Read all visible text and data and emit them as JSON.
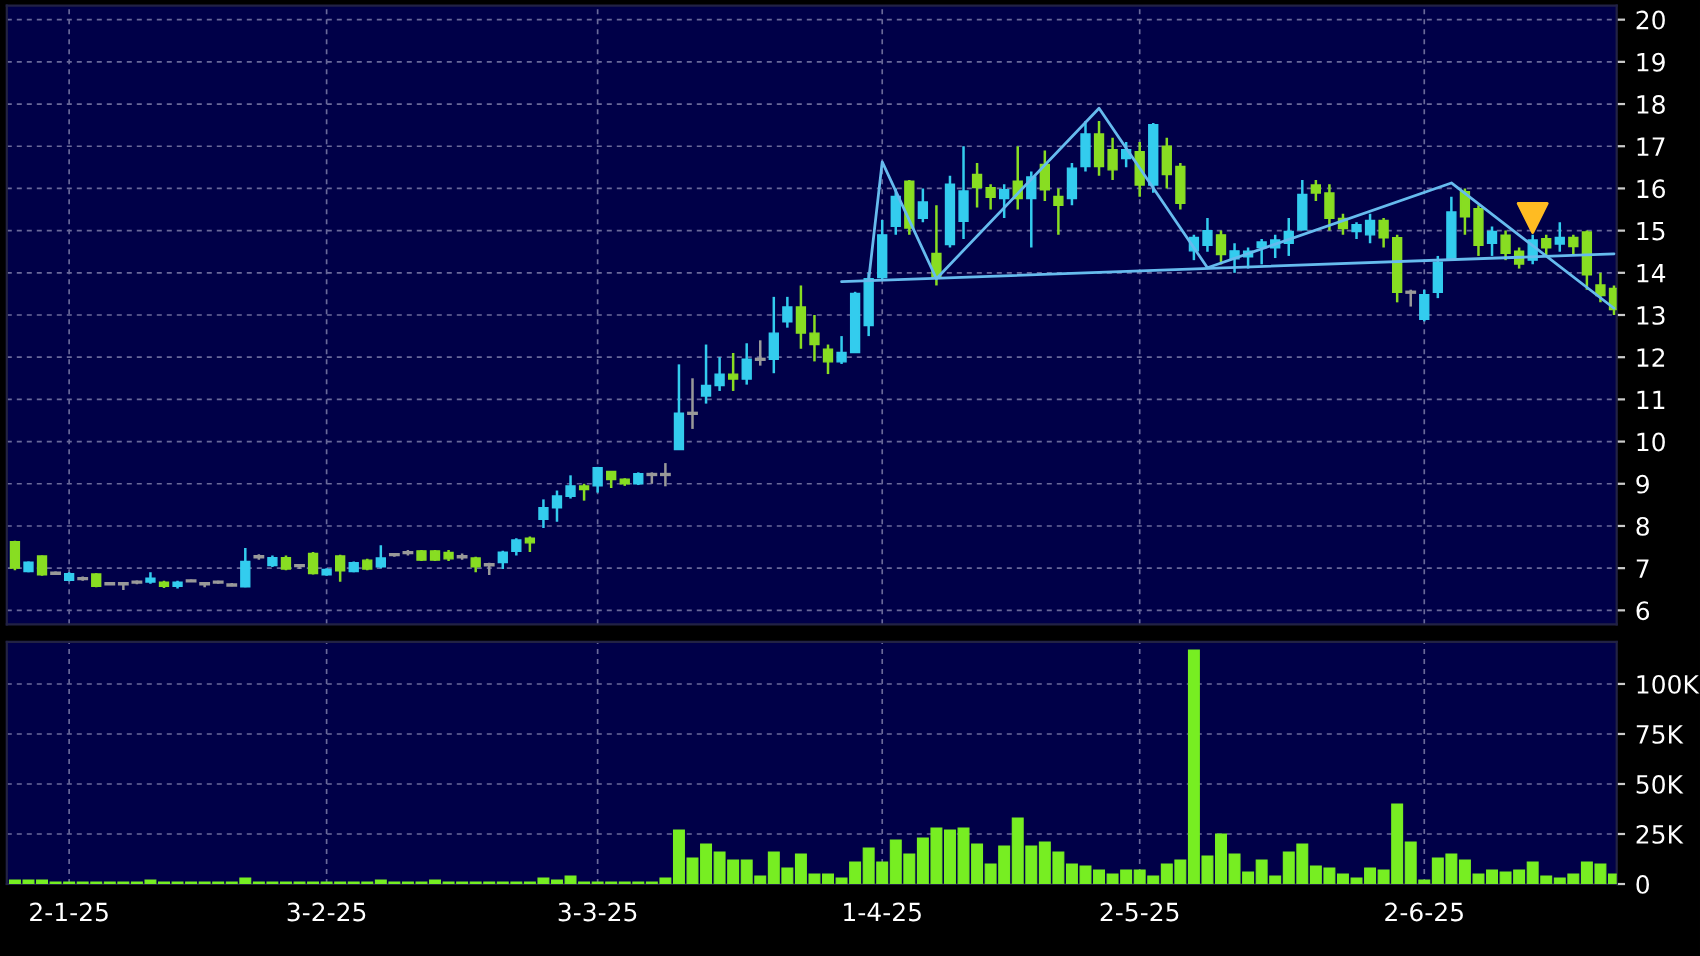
{
  "chart_data": [
    {
      "type": "candlestick",
      "categories": [
        null,
        null,
        null,
        null,
        null,
        null,
        null,
        null,
        null,
        null,
        null,
        null,
        null,
        null,
        null,
        null,
        null,
        null,
        null,
        null,
        null,
        null,
        null,
        null,
        null,
        null,
        null,
        null,
        null,
        null,
        null,
        null,
        null,
        null,
        null,
        null,
        null,
        null,
        null,
        null,
        null,
        null,
        null,
        null,
        null,
        null,
        null,
        null,
        null,
        null,
        null,
        null,
        null,
        null,
        null,
        null,
        null,
        null,
        null,
        null,
        null,
        null,
        null,
        null,
        null,
        null,
        null,
        null,
        null,
        null,
        null,
        null,
        null,
        null,
        null,
        null,
        null,
        null,
        null,
        null,
        null,
        null,
        null,
        null,
        null,
        null,
        null,
        null,
        null,
        null,
        null,
        null,
        null,
        null,
        null,
        null,
        null,
        null,
        null,
        null,
        null,
        null,
        null,
        null,
        null,
        null,
        null,
        null,
        null,
        null,
        null,
        null,
        null,
        null,
        null,
        null,
        null,
        null,
        null
      ],
      "ohlc": [
        [
          7.63,
          7.65,
          6.95,
          7.0
        ],
        [
          6.92,
          7.16,
          6.9,
          7.14
        ],
        [
          7.29,
          7.3,
          6.82,
          6.84
        ],
        [
          6.88,
          6.92,
          6.84,
          6.88
        ],
        [
          6.71,
          6.9,
          6.69,
          6.87
        ],
        [
          6.75,
          6.8,
          6.7,
          6.75
        ],
        [
          6.86,
          6.88,
          6.55,
          6.57
        ],
        [
          6.63,
          6.65,
          6.6,
          6.63
        ],
        [
          6.63,
          6.66,
          6.48,
          6.63
        ],
        [
          6.67,
          6.71,
          6.62,
          6.67
        ],
        [
          6.67,
          6.9,
          6.63,
          6.76
        ],
        [
          6.67,
          6.7,
          6.53,
          6.57
        ],
        [
          6.57,
          6.7,
          6.52,
          6.67
        ],
        [
          6.7,
          6.73,
          6.67,
          6.7
        ],
        [
          6.63,
          6.65,
          6.55,
          6.63
        ],
        [
          6.67,
          6.7,
          6.63,
          6.67
        ],
        [
          6.6,
          6.65,
          6.57,
          6.6
        ],
        [
          6.56,
          7.48,
          6.55,
          7.16
        ],
        [
          7.27,
          7.33,
          7.2,
          7.27
        ],
        [
          7.06,
          7.3,
          7.03,
          7.25
        ],
        [
          7.25,
          7.3,
          6.95,
          6.98
        ],
        [
          7.06,
          7.1,
          6.98,
          7.06
        ],
        [
          7.35,
          7.38,
          6.85,
          6.87
        ],
        [
          6.84,
          7.0,
          6.82,
          6.97
        ],
        [
          7.29,
          7.32,
          6.68,
          6.94
        ],
        [
          6.92,
          7.16,
          6.9,
          7.13
        ],
        [
          7.19,
          7.22,
          6.95,
          6.98
        ],
        [
          7.03,
          7.54,
          7.0,
          7.24
        ],
        [
          7.32,
          7.36,
          7.27,
          7.32
        ],
        [
          7.37,
          7.43,
          7.3,
          7.37
        ],
        [
          7.41,
          7.43,
          7.17,
          7.19
        ],
        [
          7.41,
          7.43,
          7.17,
          7.19
        ],
        [
          7.37,
          7.43,
          7.17,
          7.22
        ],
        [
          7.27,
          7.35,
          7.2,
          7.27
        ],
        [
          7.24,
          7.27,
          6.9,
          7.03
        ],
        [
          7.08,
          7.13,
          6.84,
          7.08
        ],
        [
          7.13,
          7.41,
          6.98,
          7.38
        ],
        [
          7.4,
          7.71,
          7.3,
          7.67
        ],
        [
          7.71,
          7.75,
          7.38,
          7.6
        ],
        [
          8.16,
          8.63,
          7.95,
          8.43
        ],
        [
          8.43,
          8.84,
          8.1,
          8.71
        ],
        [
          8.7,
          9.2,
          8.65,
          8.95
        ],
        [
          8.95,
          9.0,
          8.6,
          8.86
        ],
        [
          8.95,
          9.4,
          8.79,
          9.38
        ],
        [
          9.29,
          9.3,
          8.9,
          9.1
        ],
        [
          9.11,
          9.13,
          8.95,
          9.0
        ],
        [
          9.0,
          9.27,
          8.97,
          9.24
        ],
        [
          9.22,
          9.27,
          9.0,
          9.22
        ],
        [
          9.22,
          9.49,
          8.94,
          9.22
        ],
        [
          9.81,
          11.83,
          9.81,
          10.67
        ],
        [
          10.67,
          11.5,
          10.3,
          10.67
        ],
        [
          11.08,
          12.3,
          10.9,
          11.33
        ],
        [
          11.33,
          12.0,
          11.2,
          11.6
        ],
        [
          11.6,
          12.1,
          11.2,
          11.48
        ],
        [
          11.48,
          12.33,
          11.35,
          11.95
        ],
        [
          11.95,
          12.4,
          11.8,
          11.95
        ],
        [
          11.95,
          13.43,
          11.62,
          12.57
        ],
        [
          12.84,
          13.43,
          12.7,
          13.19
        ],
        [
          13.19,
          13.7,
          12.2,
          12.57
        ],
        [
          12.57,
          13.0,
          11.9,
          12.3
        ],
        [
          12.19,
          12.3,
          11.6,
          11.89
        ],
        [
          11.89,
          12.5,
          11.84,
          12.11
        ],
        [
          12.11,
          13.55,
          12.1,
          13.51
        ],
        [
          12.75,
          14.0,
          12.5,
          13.86
        ],
        [
          13.89,
          15.25,
          13.85,
          14.9
        ],
        [
          15.1,
          16.0,
          14.9,
          15.81
        ],
        [
          16.17,
          16.2,
          14.9,
          15.06
        ],
        [
          15.29,
          16.0,
          15.2,
          15.68
        ],
        [
          14.46,
          15.6,
          13.7,
          13.89
        ],
        [
          14.67,
          16.3,
          14.6,
          16.1
        ],
        [
          15.22,
          17.0,
          14.8,
          15.94
        ],
        [
          16.33,
          16.6,
          15.55,
          16.02
        ],
        [
          16.02,
          16.1,
          15.5,
          15.79
        ],
        [
          15.76,
          16.1,
          15.3,
          15.97
        ],
        [
          16.17,
          17.0,
          15.5,
          15.76
        ],
        [
          15.76,
          16.4,
          14.6,
          16.27
        ],
        [
          16.57,
          16.9,
          15.7,
          15.97
        ],
        [
          15.81,
          16.0,
          14.9,
          15.6
        ],
        [
          15.76,
          16.6,
          15.6,
          16.48
        ],
        [
          16.52,
          17.6,
          16.4,
          17.29
        ],
        [
          17.29,
          17.6,
          16.3,
          16.52
        ],
        [
          16.92,
          17.2,
          16.2,
          16.44
        ],
        [
          16.71,
          17.1,
          16.5,
          16.92
        ],
        [
          16.87,
          17.1,
          15.8,
          16.08
        ],
        [
          16.08,
          17.55,
          15.9,
          17.51
        ],
        [
          17.0,
          17.2,
          16.0,
          16.33
        ],
        [
          16.52,
          16.6,
          15.5,
          15.65
        ],
        [
          14.52,
          14.9,
          14.3,
          14.84
        ],
        [
          14.65,
          15.3,
          14.5,
          15.0
        ],
        [
          14.9,
          15.0,
          14.2,
          14.43
        ],
        [
          14.33,
          14.7,
          14.0,
          14.52
        ],
        [
          14.38,
          14.6,
          14.1,
          14.51
        ],
        [
          14.6,
          14.8,
          14.2,
          14.73
        ],
        [
          14.59,
          14.9,
          14.35,
          14.78
        ],
        [
          14.7,
          15.3,
          14.4,
          14.98
        ],
        [
          15.02,
          16.2,
          15.0,
          15.86
        ],
        [
          16.08,
          16.2,
          15.7,
          15.89
        ],
        [
          15.89,
          16.1,
          15.0,
          15.29
        ],
        [
          15.29,
          15.4,
          14.9,
          15.05
        ],
        [
          14.98,
          15.2,
          14.8,
          15.14
        ],
        [
          14.9,
          15.4,
          14.7,
          15.24
        ],
        [
          15.24,
          15.3,
          14.6,
          14.83
        ],
        [
          14.83,
          14.9,
          13.3,
          13.54
        ],
        [
          13.54,
          13.6,
          13.2,
          13.54
        ],
        [
          12.9,
          13.6,
          12.85,
          13.48
        ],
        [
          13.54,
          14.4,
          13.4,
          14.25
        ],
        [
          14.33,
          15.8,
          14.3,
          15.44
        ],
        [
          15.92,
          16.0,
          14.9,
          15.33
        ],
        [
          15.52,
          15.6,
          14.4,
          14.65
        ],
        [
          14.7,
          15.1,
          14.4,
          14.98
        ],
        [
          14.89,
          15.0,
          14.3,
          14.46
        ],
        [
          14.51,
          14.6,
          14.1,
          14.21
        ],
        [
          14.3,
          14.9,
          14.2,
          14.78
        ],
        [
          14.81,
          14.9,
          14.4,
          14.59
        ],
        [
          14.68,
          15.2,
          14.5,
          14.84
        ],
        [
          14.84,
          14.9,
          14.4,
          14.62
        ],
        [
          14.97,
          15.0,
          13.6,
          13.95
        ],
        [
          13.71,
          14.0,
          13.3,
          13.46
        ],
        [
          13.63,
          13.7,
          13.0,
          13.13
        ]
      ],
      "colors": [
        "#88dd22",
        "#33ccee",
        "#88dd22",
        "#999999",
        "#33ccee",
        "#999999",
        "#88dd22",
        "#999999",
        "#999999",
        "#999999",
        "#33ccee",
        "#88dd22",
        "#33ccee",
        "#999999",
        "#999999",
        "#999999",
        "#999999",
        "#33ccee",
        "#999999",
        "#33ccee",
        "#88dd22",
        "#999999",
        "#88dd22",
        "#33ccee",
        "#88dd22",
        "#33ccee",
        "#88dd22",
        "#33ccee",
        "#999999",
        "#999999",
        "#88dd22",
        "#88dd22",
        "#88dd22",
        "#999999",
        "#88dd22",
        "#999999",
        "#33ccee",
        "#33ccee",
        "#88dd22",
        "#33ccee",
        "#33ccee",
        "#33ccee",
        "#88dd22",
        "#33ccee",
        "#88dd22",
        "#88dd22",
        "#33ccee",
        "#999999",
        "#999999",
        "#33ccee",
        "#999999",
        "#33ccee",
        "#33ccee",
        "#88dd22",
        "#33ccee",
        "#999999",
        "#33ccee",
        "#33ccee",
        "#88dd22",
        "#88dd22",
        "#88dd22",
        "#33ccee",
        "#33ccee",
        "#33ccee",
        "#33ccee",
        "#33ccee",
        "#88dd22",
        "#33ccee",
        "#88dd22",
        "#33ccee",
        "#33ccee",
        "#88dd22",
        "#88dd22",
        "#33ccee",
        "#88dd22",
        "#33ccee",
        "#88dd22",
        "#88dd22",
        "#33ccee",
        "#33ccee",
        "#88dd22",
        "#88dd22",
        "#33ccee",
        "#88dd22",
        "#33ccee",
        "#88dd22",
        "#88dd22",
        "#33ccee",
        "#33ccee",
        "#88dd22",
        "#33ccee",
        "#33ccee",
        "#33ccee",
        "#33ccee",
        "#33ccee",
        "#33ccee",
        "#88dd22",
        "#88dd22",
        "#88dd22",
        "#33ccee",
        "#33ccee",
        "#88dd22",
        "#88dd22",
        "#999999",
        "#33ccee",
        "#33ccee",
        "#33ccee",
        "#88dd22",
        "#88dd22",
        "#33ccee",
        "#88dd22",
        "#88dd22",
        "#33ccee",
        "#88dd22",
        "#33ccee",
        "#88dd22",
        "#88dd22",
        "#88dd22",
        "#88dd22"
      ],
      "series": [
        {
          "type": "line",
          "color": "#66bbee",
          "values": [
            null,
            null,
            null,
            null,
            null,
            null,
            null,
            null,
            null,
            null,
            null,
            null,
            null,
            null,
            null,
            null,
            null,
            null,
            null,
            null,
            null,
            null,
            null,
            null,
            null,
            null,
            null,
            null,
            null,
            null,
            null,
            null,
            null,
            null,
            null,
            null,
            null,
            null,
            null,
            null,
            null,
            null,
            null,
            null,
            null,
            null,
            null,
            null,
            null,
            null,
            null,
            null,
            null,
            null,
            null,
            null,
            null,
            null,
            null,
            null,
            null,
            null,
            null,
            13.83,
            16.63,
            null,
            null,
            null,
            13.86,
            null,
            null,
            null,
            null,
            null,
            null,
            null,
            null,
            null,
            null,
            null,
            17.9,
            null,
            null,
            null,
            null,
            null,
            null,
            null,
            14.12,
            null,
            null,
            null,
            null,
            null,
            null,
            null,
            null,
            null,
            null,
            null,
            null,
            null,
            null,
            null,
            null,
            null,
            16.13,
            null,
            null,
            null,
            null,
            null,
            null,
            null,
            null,
            null,
            null,
            null,
            13.16
          ]
        },
        {
          "type": "line",
          "color": "#66bbee",
          "values": [
            null,
            null,
            null,
            null,
            null,
            null,
            null,
            null,
            null,
            null,
            null,
            null,
            null,
            null,
            null,
            null,
            null,
            null,
            null,
            null,
            null,
            null,
            null,
            null,
            null,
            null,
            null,
            null,
            null,
            null,
            null,
            null,
            null,
            null,
            null,
            null,
            null,
            null,
            null,
            null,
            null,
            null,
            null,
            null,
            null,
            null,
            null,
            null,
            null,
            null,
            null,
            null,
            null,
            null,
            null,
            null,
            null,
            null,
            null,
            null,
            null,
            13.79,
            null,
            null,
            null,
            null,
            null,
            null,
            null,
            null,
            null,
            null,
            null,
            null,
            null,
            null,
            null,
            null,
            null,
            null,
            null,
            null,
            null,
            null,
            null,
            null,
            null,
            null,
            null,
            null,
            null,
            null,
            null,
            null,
            null,
            null,
            null,
            null,
            null,
            null,
            null,
            null,
            null,
            null,
            null,
            null,
            null,
            null,
            null,
            null,
            null,
            null,
            null,
            null,
            null,
            null,
            null,
            null,
            14.45
          ]
        },
        {
          "type": "scatter",
          "color": "#ffbb22",
          "marker": "triangle",
          "values": [
            null,
            null,
            null,
            null,
            null,
            null,
            null,
            null,
            null,
            null,
            null,
            null,
            null,
            null,
            null,
            null,
            null,
            null,
            null,
            null,
            null,
            null,
            null,
            null,
            null,
            null,
            null,
            null,
            null,
            null,
            null,
            null,
            null,
            null,
            null,
            null,
            null,
            null,
            null,
            null,
            null,
            null,
            null,
            null,
            null,
            null,
            null,
            null,
            null,
            null,
            null,
            null,
            null,
            null,
            null,
            null,
            null,
            null,
            null,
            null,
            null,
            null,
            null,
            null,
            null,
            null,
            null,
            null,
            null,
            null,
            null,
            null,
            null,
            null,
            null,
            null,
            null,
            null,
            null,
            null,
            null,
            null,
            null,
            null,
            null,
            null,
            null,
            null,
            null,
            null,
            null,
            null,
            null,
            null,
            null,
            null,
            null,
            null,
            null,
            null,
            null,
            null,
            null,
            null,
            null,
            null,
            null,
            null,
            null,
            null,
            null,
            null,
            15.3,
            null,
            null,
            null,
            null,
            null,
            null
          ]
        }
      ],
      "ylim": [
        5.67,
        20.33
      ],
      "yticks": [
        6,
        7,
        8,
        9,
        10,
        11,
        12,
        13,
        14,
        15,
        16,
        17,
        18,
        19,
        20
      ],
      "grid": true,
      "tick_labels": "y"
    },
    {
      "type": "bar",
      "categories": [
        null,
        null,
        null,
        null,
        "2-1-25",
        null,
        null,
        null,
        null,
        null,
        null,
        null,
        null,
        null,
        null,
        null,
        null,
        null,
        null,
        null,
        null,
        null,
        null,
        "3-2-25",
        null,
        null,
        null,
        null,
        null,
        null,
        null,
        null,
        null,
        null,
        null,
        null,
        null,
        null,
        null,
        null,
        null,
        null,
        null,
        "3-3-25",
        null,
        null,
        null,
        null,
        null,
        null,
        null,
        null,
        null,
        null,
        null,
        null,
        null,
        null,
        null,
        null,
        null,
        null,
        null,
        null,
        "1-4-25",
        null,
        null,
        null,
        null,
        null,
        null,
        null,
        null,
        null,
        null,
        null,
        null,
        null,
        null,
        null,
        null,
        null,
        null,
        "2-5-25",
        null,
        null,
        null,
        null,
        null,
        null,
        null,
        null,
        null,
        null,
        null,
        null,
        null,
        null,
        null,
        null,
        null,
        null,
        null,
        null,
        "2-6-25",
        null,
        null,
        null,
        null,
        null,
        null,
        null,
        null,
        null,
        null,
        null,
        null,
        null,
        null
      ],
      "values": [
        2,
        2,
        2,
        1,
        1,
        1,
        1,
        1,
        1,
        1,
        2,
        1,
        1,
        1,
        1,
        1,
        1,
        3,
        1,
        1,
        1,
        1,
        1,
        1,
        1,
        1,
        1,
        2,
        1,
        1,
        1,
        2,
        1,
        1,
        1,
        1,
        1,
        1,
        1,
        3,
        2,
        4,
        1,
        1,
        1,
        1,
        1,
        1,
        3,
        27,
        13,
        20,
        16,
        12,
        12,
        4,
        16,
        8,
        15,
        5,
        5,
        3,
        11,
        18,
        11,
        22,
        15,
        23,
        28,
        27,
        28,
        20,
        10,
        19,
        33,
        19,
        21,
        16,
        10,
        9,
        7,
        5,
        7,
        7,
        4,
        10,
        12,
        117,
        14,
        25,
        15,
        6,
        12,
        4,
        16,
        20,
        9,
        8,
        5,
        3,
        8,
        7,
        40,
        21,
        2,
        13,
        15,
        12,
        5,
        7,
        6,
        7,
        11,
        4,
        3,
        5,
        11,
        10,
        5
      ],
      "color": "#77ee22",
      "ylim": [
        0,
        121
      ],
      "yticks": [
        0,
        {
          "value": 25,
          "label": "25K"
        },
        {
          "value": 50,
          "label": "50K"
        },
        {
          "value": 75,
          "label": "75K"
        },
        {
          "value": 100,
          "label": "100K"
        }
      ],
      "grid": true
    }
  ]
}
